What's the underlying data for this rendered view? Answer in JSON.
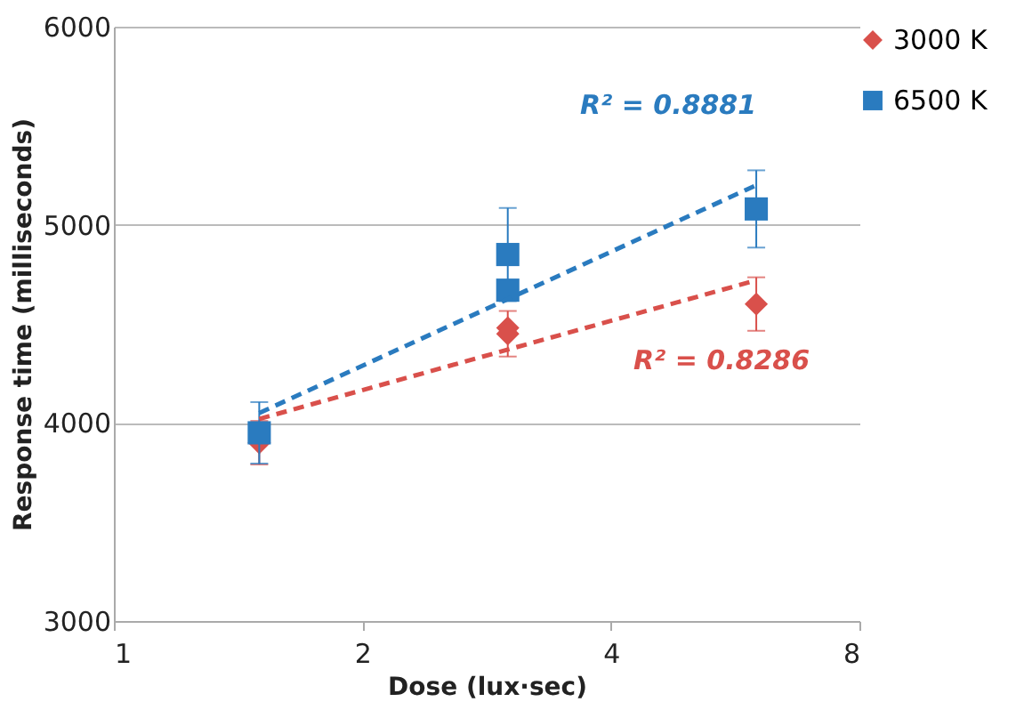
{
  "chart_data": {
    "type": "scatter",
    "xlabel": "Dose (lux·sec)",
    "ylabel": "Response time (milliseconds)",
    "log": "x",
    "xlim": [
      1,
      8
    ],
    "xticks": [
      1,
      2,
      4,
      8
    ],
    "ylim": [
      3000,
      6000
    ],
    "yticks": [
      3000,
      4000,
      5000,
      6000
    ],
    "grid": "y",
    "legend": "right",
    "series": [
      {
        "name": "3000 K",
        "marker": "diamond",
        "color": "#d9504b",
        "x": [
          1.5,
          3,
          3,
          6
        ],
        "values": [
          3900,
          4480,
          4450,
          4600
        ],
        "errors": [
          110,
          null,
          115,
          135
        ]
      },
      {
        "name": "6500 K",
        "marker": "square",
        "color": "#2a7bbf",
        "x": [
          1.5,
          3,
          3,
          6
        ],
        "values": [
          3950,
          4850,
          4670,
          5080
        ],
        "errors": [
          155,
          235,
          null,
          195
        ]
      },
      {
        "type": "line",
        "line_style": "dashed",
        "color": "#d9504b",
        "x": [
          1.5,
          6
        ],
        "values": [
          4020,
          4720
        ]
      },
      {
        "type": "line",
        "line_style": "dashed",
        "color": "#2a7bbf",
        "x": [
          1.5,
          6
        ],
        "values": [
          4050,
          5200
        ]
      }
    ],
    "annotations": [
      "R² = 0.8286",
      "R² = 0.8881"
    ]
  }
}
